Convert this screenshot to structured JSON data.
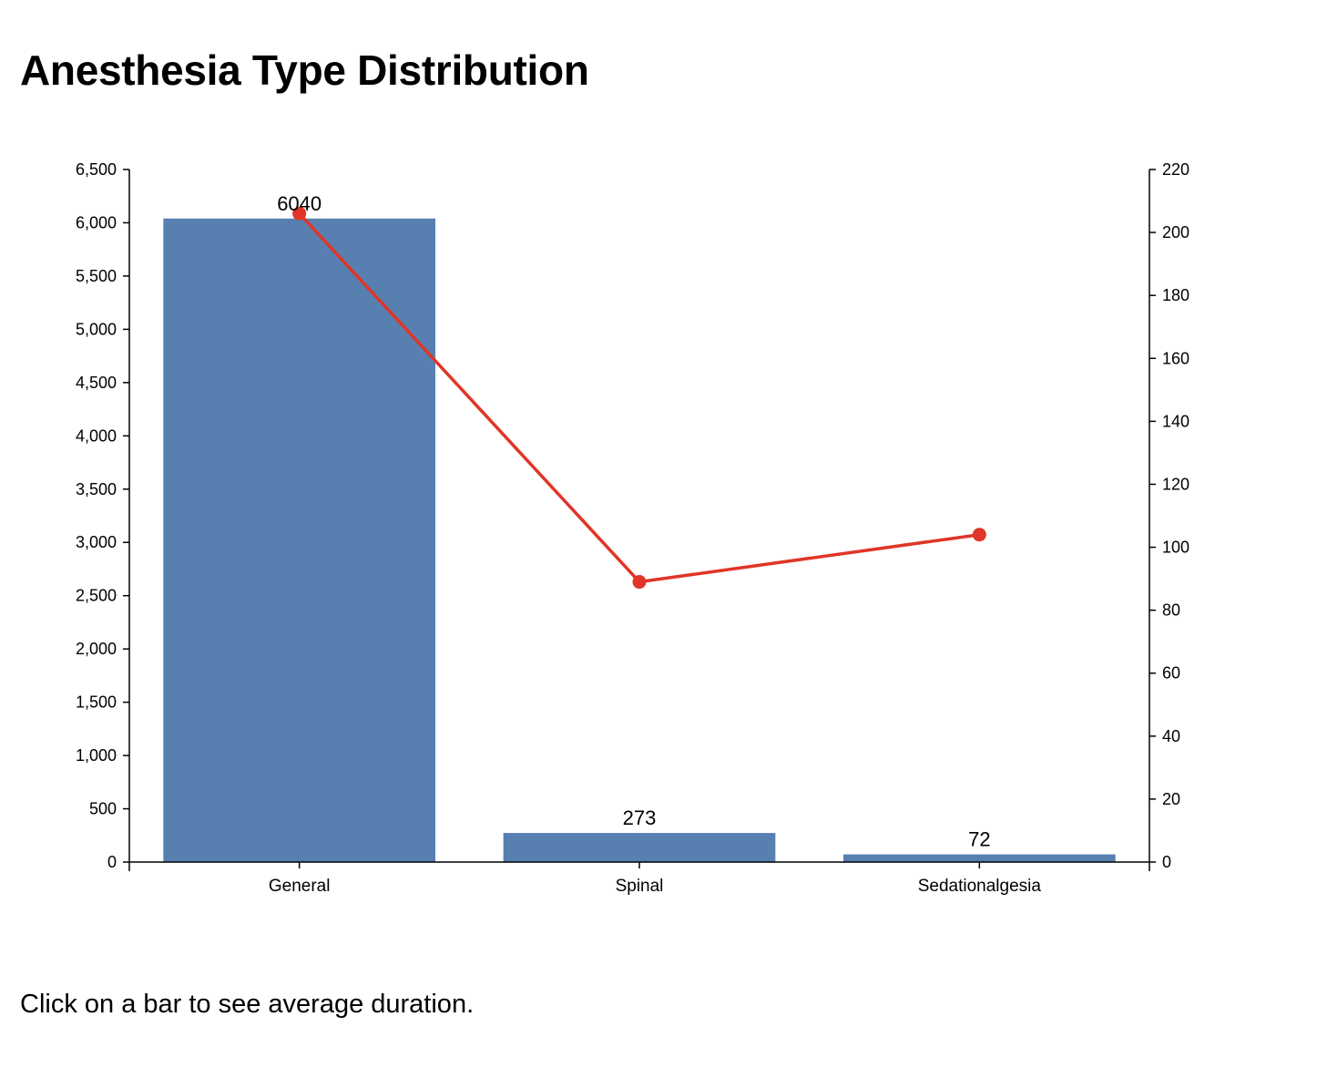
{
  "page": {
    "title": "Anesthesia Type Distribution",
    "hint": "Click on a bar to see average duration."
  },
  "chart_data": {
    "type": "bar",
    "categories": [
      "General",
      "Spinal",
      "Sedationalgesia"
    ],
    "series": [
      {
        "type": "bar",
        "axis": "left",
        "color": "#5780b1",
        "values": [
          6040,
          273,
          72
        ],
        "labels": [
          "6040",
          "273",
          "72"
        ]
      },
      {
        "type": "line",
        "axis": "right",
        "color": "#e03527",
        "values": [
          206,
          89,
          104
        ]
      }
    ],
    "y_left": {
      "min": 0,
      "max": 6500,
      "ticks": [
        0,
        500,
        1000,
        1500,
        2000,
        2500,
        3000,
        3500,
        4000,
        4500,
        5000,
        5500,
        6000,
        6500
      ],
      "tick_labels": [
        "0",
        "500",
        "1,000",
        "1,500",
        "2,000",
        "2,500",
        "3,000",
        "3,500",
        "4,000",
        "4,500",
        "5,000",
        "5,500",
        "6,000",
        "6,500"
      ]
    },
    "y_right": {
      "min": 0,
      "max": 220,
      "ticks": [
        0,
        20,
        40,
        60,
        80,
        100,
        120,
        140,
        160,
        180,
        200,
        220
      ],
      "tick_labels": [
        "0",
        "20",
        "40",
        "60",
        "80",
        "100",
        "120",
        "140",
        "160",
        "180",
        "200",
        "220"
      ]
    },
    "grid": false,
    "legend": "none"
  }
}
